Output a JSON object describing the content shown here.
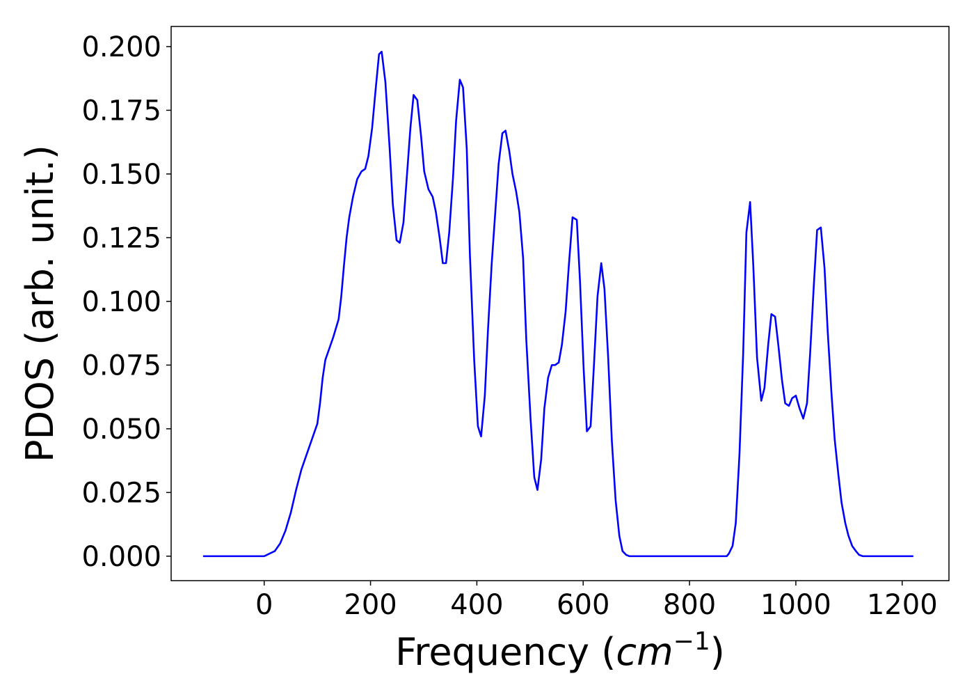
{
  "chart_data": {
    "type": "line",
    "xlabel": [
      "Frequency (",
      "cm",
      "−1",
      ")"
    ],
    "ylabel": "PDOS (arb. unit.)",
    "x": [
      -115,
      0,
      10,
      20,
      30,
      40,
      50,
      60,
      70,
      80,
      90,
      100,
      105,
      110,
      115,
      130,
      140,
      145,
      150,
      155,
      160,
      167,
      175,
      183,
      190,
      196,
      203,
      210,
      216,
      221,
      228,
      236,
      242,
      249,
      255,
      262,
      268,
      275,
      281,
      288,
      295,
      301,
      309,
      317,
      323,
      330,
      336,
      342,
      348,
      355,
      361,
      368,
      374,
      381,
      387,
      395,
      402,
      408,
      415,
      421,
      428,
      435,
      441,
      448,
      454,
      461,
      467,
      474,
      480,
      487,
      493,
      501,
      508,
      514,
      521,
      527,
      534,
      541,
      547,
      554,
      560,
      567,
      573,
      580,
      588,
      594,
      601,
      607,
      614,
      620,
      627,
      634,
      640,
      647,
      654,
      661,
      668,
      674,
      681,
      687,
      870,
      874,
      881,
      887,
      894,
      901,
      907,
      914,
      920,
      927,
      935,
      941,
      948,
      954,
      961,
      967,
      974,
      980,
      987,
      993,
      1000,
      1007,
      1014,
      1021,
      1027,
      1034,
      1040,
      1047,
      1054,
      1060,
      1067,
      1073,
      1080,
      1086,
      1093,
      1099,
      1106,
      1113,
      1119,
      1126,
      1221
    ],
    "series": [
      {
        "name": "PDOS",
        "color": "#0000ff",
        "values": [
          0,
          0,
          0.001,
          0.002,
          0.005,
          0.01,
          0.017,
          0.026,
          0.034,
          0.04,
          0.046,
          0.052,
          0.06,
          0.07,
          0.077,
          0.086,
          0.093,
          0.102,
          0.114,
          0.125,
          0.133,
          0.141,
          0.148,
          0.151,
          0.152,
          0.157,
          0.168,
          0.184,
          0.197,
          0.198,
          0.186,
          0.16,
          0.138,
          0.124,
          0.123,
          0.131,
          0.148,
          0.168,
          0.181,
          0.179,
          0.165,
          0.151,
          0.144,
          0.141,
          0.135,
          0.125,
          0.115,
          0.115,
          0.127,
          0.148,
          0.171,
          0.187,
          0.184,
          0.16,
          0.118,
          0.077,
          0.051,
          0.047,
          0.063,
          0.089,
          0.115,
          0.136,
          0.154,
          0.166,
          0.167,
          0.159,
          0.15,
          0.143,
          0.135,
          0.117,
          0.085,
          0.054,
          0.031,
          0.026,
          0.038,
          0.058,
          0.07,
          0.075,
          0.075,
          0.076,
          0.083,
          0.096,
          0.114,
          0.133,
          0.132,
          0.108,
          0.073,
          0.049,
          0.051,
          0.074,
          0.102,
          0.115,
          0.105,
          0.078,
          0.045,
          0.022,
          0.008,
          0.002,
          0.0005,
          0,
          0,
          0.001,
          0.004,
          0.013,
          0.04,
          0.08,
          0.127,
          0.139,
          0.114,
          0.078,
          0.061,
          0.066,
          0.083,
          0.095,
          0.094,
          0.083,
          0.069,
          0.06,
          0.059,
          0.062,
          0.063,
          0.058,
          0.054,
          0.06,
          0.08,
          0.107,
          0.128,
          0.129,
          0.113,
          0.088,
          0.064,
          0.046,
          0.032,
          0.021,
          0.013,
          0.008,
          0.004,
          0.002,
          0.0005,
          0,
          0
        ]
      }
    ],
    "xlim": [
      -175,
      1288
    ],
    "ylim": [
      -0.0096,
      0.2079
    ],
    "xticks": [
      0,
      200,
      400,
      600,
      800,
      1000,
      1200
    ],
    "yticks": [
      {
        "value": 0,
        "label": "0.000"
      },
      {
        "value": 0.025,
        "label": "0.025"
      },
      {
        "value": 0.05,
        "label": "0.050"
      },
      {
        "value": 0.075,
        "label": "0.075"
      },
      {
        "value": 0.1,
        "label": "0.100"
      },
      {
        "value": 0.125,
        "label": "0.125"
      },
      {
        "value": 0.15,
        "label": "0.150"
      },
      {
        "value": 0.175,
        "label": "0.175"
      },
      {
        "value": 0.2,
        "label": "0.200"
      }
    ],
    "grid": false
  }
}
